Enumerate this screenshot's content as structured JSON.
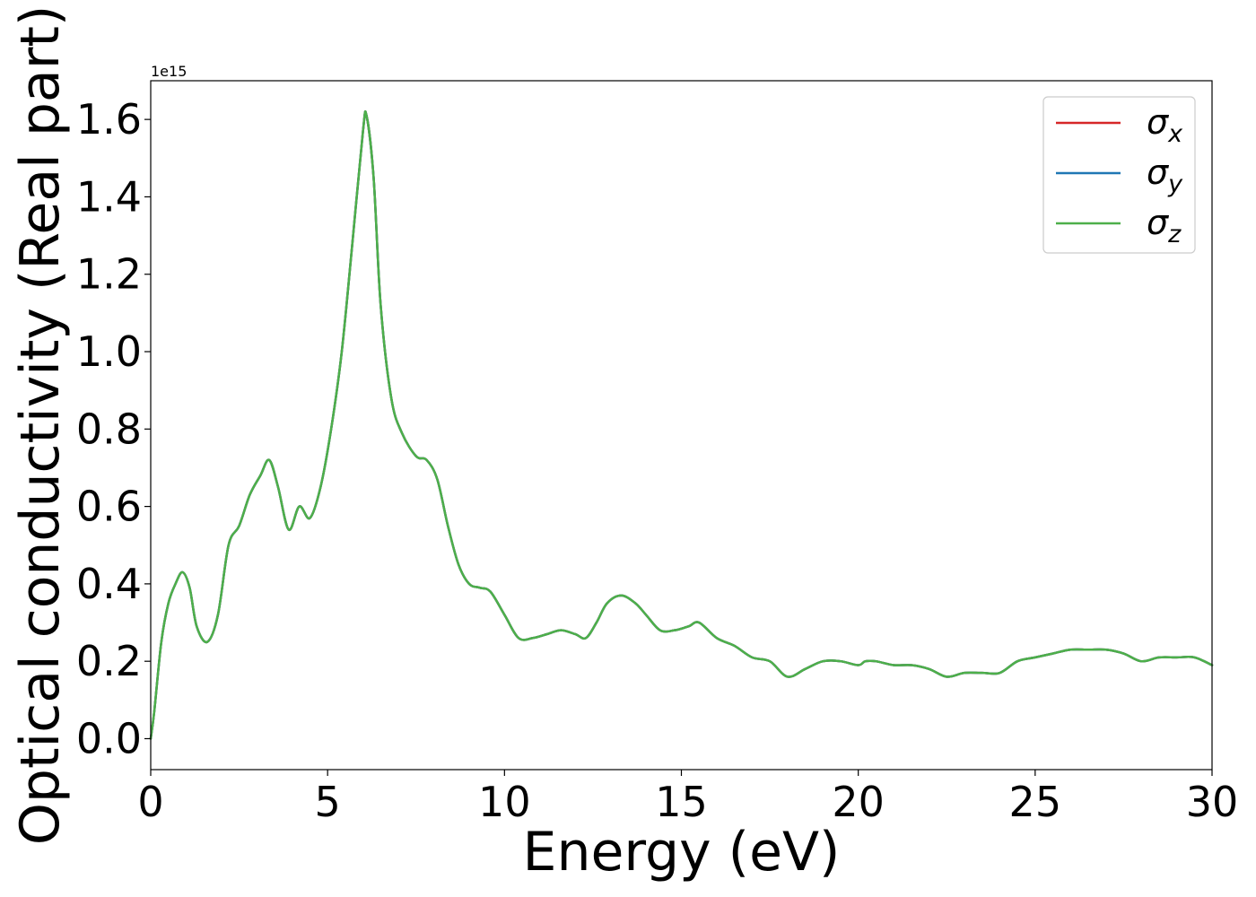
{
  "chart_data": {
    "type": "line",
    "xlabel": "Energy (eV)",
    "ylabel": "Optical conductivity (Real part)",
    "y_offset_text": "1e15",
    "y_multiplier": 1000000000000000.0,
    "xlim": [
      0,
      30
    ],
    "ylim": [
      -0.08,
      1.7
    ],
    "x_ticks": [
      0,
      5,
      10,
      15,
      20,
      25,
      30
    ],
    "x_tick_labels": [
      "0",
      "5",
      "10",
      "15",
      "20",
      "25",
      "30"
    ],
    "y_ticks": [
      0.0,
      0.2,
      0.4,
      0.6,
      0.8,
      1.0,
      1.2,
      1.4,
      1.6
    ],
    "y_tick_labels": [
      "0.0",
      "0.2",
      "0.4",
      "0.6",
      "0.8",
      "1.0",
      "1.2",
      "1.4",
      "1.6"
    ],
    "grid": false,
    "legend_position": "top-right",
    "series": [
      {
        "name": "σx",
        "legend_symbol": "σ",
        "legend_subscript": "x",
        "color": "#d62728",
        "x": [
          0,
          0.1,
          0.3,
          0.5,
          0.7,
          0.9,
          1.1,
          1.3,
          1.6,
          1.9,
          2.2,
          2.5,
          2.8,
          3.1,
          3.35,
          3.6,
          3.9,
          4.2,
          4.5,
          4.8,
          5.1,
          5.4,
          5.7,
          6.0,
          6.1,
          6.3,
          6.5,
          6.8,
          7.1,
          7.5,
          7.8,
          8.1,
          8.4,
          8.7,
          9.0,
          9.3,
          9.6,
          10.0,
          10.4,
          10.8,
          11.2,
          11.6,
          12.0,
          12.3,
          12.6,
          12.9,
          13.3,
          13.7,
          14.0,
          14.4,
          14.8,
          15.2,
          15.5,
          16.0,
          16.5,
          17.0,
          17.5,
          18.0,
          18.5,
          19.0,
          19.5,
          20.0,
          20.2,
          20.5,
          21.0,
          21.5,
          22.0,
          22.5,
          23.0,
          23.5,
          24.0,
          24.5,
          25.0,
          25.5,
          26.0,
          26.5,
          27.0,
          27.5,
          28.0,
          28.5,
          29.0,
          29.5,
          30.0
        ],
        "y": [
          0.0,
          0.07,
          0.25,
          0.35,
          0.4,
          0.43,
          0.39,
          0.29,
          0.25,
          0.32,
          0.5,
          0.55,
          0.63,
          0.68,
          0.72,
          0.65,
          0.54,
          0.6,
          0.57,
          0.65,
          0.8,
          1.0,
          1.28,
          1.57,
          1.61,
          1.45,
          1.12,
          0.88,
          0.79,
          0.73,
          0.72,
          0.67,
          0.55,
          0.45,
          0.4,
          0.39,
          0.38,
          0.32,
          0.26,
          0.26,
          0.27,
          0.28,
          0.27,
          0.26,
          0.3,
          0.35,
          0.37,
          0.35,
          0.32,
          0.28,
          0.28,
          0.29,
          0.3,
          0.26,
          0.24,
          0.21,
          0.2,
          0.16,
          0.18,
          0.2,
          0.2,
          0.19,
          0.2,
          0.2,
          0.19,
          0.19,
          0.18,
          0.16,
          0.17,
          0.17,
          0.17,
          0.2,
          0.21,
          0.22,
          0.23,
          0.23,
          0.23,
          0.22,
          0.2,
          0.21,
          0.21,
          0.21,
          0.19
        ]
      },
      {
        "name": "σy",
        "legend_symbol": "σ",
        "legend_subscript": "y",
        "color": "#1f77b4",
        "x": [
          0,
          0.1,
          0.3,
          0.5,
          0.7,
          0.9,
          1.1,
          1.3,
          1.6,
          1.9,
          2.2,
          2.5,
          2.8,
          3.1,
          3.35,
          3.6,
          3.9,
          4.2,
          4.5,
          4.8,
          5.1,
          5.4,
          5.7,
          6.0,
          6.1,
          6.3,
          6.5,
          6.8,
          7.1,
          7.5,
          7.8,
          8.1,
          8.4,
          8.7,
          9.0,
          9.3,
          9.6,
          10.0,
          10.4,
          10.8,
          11.2,
          11.6,
          12.0,
          12.3,
          12.6,
          12.9,
          13.3,
          13.7,
          14.0,
          14.4,
          14.8,
          15.2,
          15.5,
          16.0,
          16.5,
          17.0,
          17.5,
          18.0,
          18.5,
          19.0,
          19.5,
          20.0,
          20.2,
          20.5,
          21.0,
          21.5,
          22.0,
          22.5,
          23.0,
          23.5,
          24.0,
          24.5,
          25.0,
          25.5,
          26.0,
          26.5,
          27.0,
          27.5,
          28.0,
          28.5,
          29.0,
          29.5,
          30.0
        ],
        "y": [
          0.0,
          0.07,
          0.25,
          0.35,
          0.4,
          0.43,
          0.39,
          0.29,
          0.25,
          0.32,
          0.5,
          0.55,
          0.63,
          0.68,
          0.72,
          0.65,
          0.54,
          0.6,
          0.57,
          0.65,
          0.8,
          1.0,
          1.28,
          1.57,
          1.61,
          1.45,
          1.12,
          0.88,
          0.79,
          0.73,
          0.72,
          0.67,
          0.55,
          0.45,
          0.4,
          0.39,
          0.38,
          0.32,
          0.26,
          0.26,
          0.27,
          0.28,
          0.27,
          0.26,
          0.3,
          0.35,
          0.37,
          0.35,
          0.32,
          0.28,
          0.28,
          0.29,
          0.3,
          0.26,
          0.24,
          0.21,
          0.2,
          0.16,
          0.18,
          0.2,
          0.2,
          0.19,
          0.2,
          0.2,
          0.19,
          0.19,
          0.18,
          0.16,
          0.17,
          0.17,
          0.17,
          0.2,
          0.21,
          0.22,
          0.23,
          0.23,
          0.23,
          0.22,
          0.2,
          0.21,
          0.21,
          0.21,
          0.19
        ]
      },
      {
        "name": "σz",
        "legend_symbol": "σ",
        "legend_subscript": "z",
        "color": "#4daf4a",
        "x": [
          0,
          0.1,
          0.3,
          0.5,
          0.7,
          0.9,
          1.1,
          1.3,
          1.6,
          1.9,
          2.2,
          2.5,
          2.8,
          3.1,
          3.35,
          3.6,
          3.9,
          4.2,
          4.5,
          4.8,
          5.1,
          5.4,
          5.7,
          6.0,
          6.1,
          6.3,
          6.5,
          6.8,
          7.1,
          7.5,
          7.8,
          8.1,
          8.4,
          8.7,
          9.0,
          9.3,
          9.6,
          10.0,
          10.4,
          10.8,
          11.2,
          11.6,
          12.0,
          12.3,
          12.6,
          12.9,
          13.3,
          13.7,
          14.0,
          14.4,
          14.8,
          15.2,
          15.5,
          16.0,
          16.5,
          17.0,
          17.5,
          18.0,
          18.5,
          19.0,
          19.5,
          20.0,
          20.2,
          20.5,
          21.0,
          21.5,
          22.0,
          22.5,
          23.0,
          23.5,
          24.0,
          24.5,
          25.0,
          25.5,
          26.0,
          26.5,
          27.0,
          27.5,
          28.0,
          28.5,
          29.0,
          29.5,
          30.0
        ],
        "y": [
          0.0,
          0.07,
          0.25,
          0.35,
          0.4,
          0.43,
          0.39,
          0.29,
          0.25,
          0.32,
          0.5,
          0.55,
          0.63,
          0.68,
          0.72,
          0.65,
          0.54,
          0.6,
          0.57,
          0.65,
          0.8,
          1.0,
          1.28,
          1.57,
          1.61,
          1.45,
          1.12,
          0.88,
          0.79,
          0.73,
          0.72,
          0.67,
          0.55,
          0.45,
          0.4,
          0.39,
          0.38,
          0.32,
          0.26,
          0.26,
          0.27,
          0.28,
          0.27,
          0.26,
          0.3,
          0.35,
          0.37,
          0.35,
          0.32,
          0.28,
          0.28,
          0.29,
          0.3,
          0.26,
          0.24,
          0.21,
          0.2,
          0.16,
          0.18,
          0.2,
          0.2,
          0.19,
          0.2,
          0.2,
          0.19,
          0.19,
          0.18,
          0.16,
          0.17,
          0.17,
          0.17,
          0.2,
          0.21,
          0.22,
          0.23,
          0.23,
          0.23,
          0.22,
          0.2,
          0.21,
          0.21,
          0.21,
          0.19
        ]
      }
    ]
  }
}
